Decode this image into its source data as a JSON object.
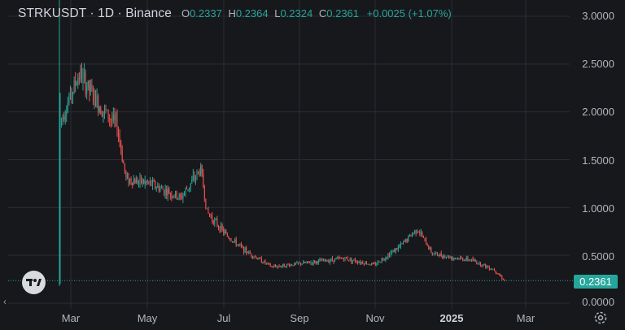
{
  "header": {
    "symbol": "STRKUSDT · 1D · Binance",
    "open_label": "O",
    "open": "0.2337",
    "high_label": "H",
    "high": "0.2364",
    "low_label": "L",
    "low": "0.2324",
    "close_label": "C",
    "close": "0.2361",
    "change": "+0.0025 (+1.07%)"
  },
  "price_tag": "0.2361",
  "colors": {
    "up": "#26a69a",
    "down": "#ef5350",
    "background": "#17181c",
    "grid": "#2a2d34"
  },
  "icons": [
    "tradingview-logo-icon",
    "scroll-left-arrow-icon",
    "settings-gear-icon"
  ],
  "chart_data": {
    "type": "candlestick",
    "x_ticks": [
      "Mar",
      "May",
      "Jul",
      "Sep",
      "Nov",
      "2025",
      "Mar"
    ],
    "y_ticks": [
      "3.0000",
      "2.5000",
      "2.0000",
      "1.5000",
      "1.0000",
      "0.5000",
      "0.0000"
    ],
    "ylim": [
      0,
      3.0
    ],
    "grid": true,
    "last_price": 0.2361,
    "approx_closes": [
      {
        "date": "2024-02-20",
        "close": 1.9
      },
      {
        "date": "2024-03-06",
        "close": 2.4
      },
      {
        "date": "2024-03-20",
        "close": 2.1
      },
      {
        "date": "2024-04-05",
        "close": 1.85
      },
      {
        "date": "2024-04-12",
        "close": 1.3
      },
      {
        "date": "2024-05-01",
        "close": 1.25
      },
      {
        "date": "2024-05-25",
        "close": 1.1
      },
      {
        "date": "2024-06-10",
        "close": 1.4
      },
      {
        "date": "2024-06-15",
        "close": 0.95
      },
      {
        "date": "2024-07-01",
        "close": 0.7
      },
      {
        "date": "2024-07-15",
        "close": 0.55
      },
      {
        "date": "2024-08-05",
        "close": 0.38
      },
      {
        "date": "2024-09-01",
        "close": 0.42
      },
      {
        "date": "2024-10-01",
        "close": 0.47
      },
      {
        "date": "2024-10-25",
        "close": 0.4
      },
      {
        "date": "2024-11-15",
        "close": 0.6
      },
      {
        "date": "2024-11-28",
        "close": 0.78
      },
      {
        "date": "2024-12-10",
        "close": 0.52
      },
      {
        "date": "2024-12-25",
        "close": 0.48
      },
      {
        "date": "2025-01-10",
        "close": 0.45
      },
      {
        "date": "2025-01-28",
        "close": 0.35
      },
      {
        "date": "2025-02-05",
        "close": 0.2361
      }
    ]
  }
}
